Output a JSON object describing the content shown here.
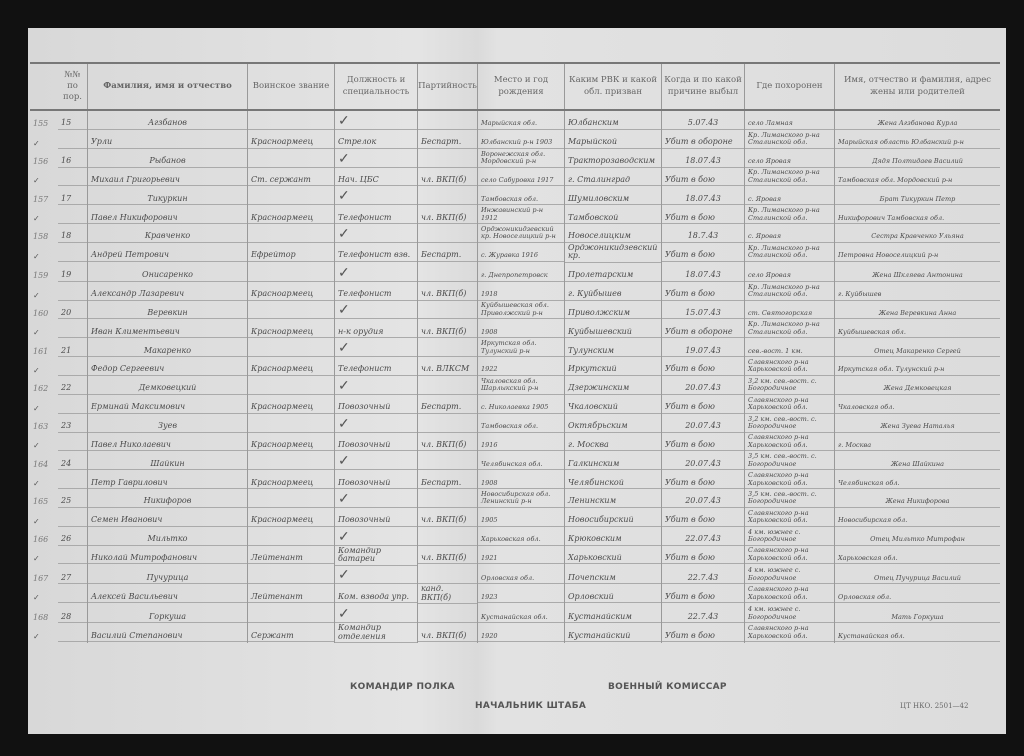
{
  "header": [
    "№№ по пор.",
    "Фамилия, имя и отчество",
    "Воинское звание",
    "Должность и специальность",
    "Партийность",
    "Место и год рождения",
    "Каким РВК и какой обл. призван",
    "Когда и по какой причине выбыл",
    "Где похоронен",
    "Имя, отчество и фамилия, адрес жены или родителей"
  ],
  "records": [
    {
      "margin": "155",
      "no": "15",
      "surname": "Агзбанов",
      "name": "Урли",
      "rank": "Красноармеец",
      "position": "Стрелок",
      "party": "Беспарт.",
      "birth": [
        "Марыйская обл.",
        "Юлбанский р-н 1903"
      ],
      "rvk": [
        "Юлбанским",
        "Марыйской"
      ],
      "date": "5.07.43",
      "cause": "Убит в обороне",
      "burial": [
        "село Ламная",
        "Кр. Лиманского р-на Сталинской обл."
      ],
      "relatives": [
        "Жена Агзбанова Курла",
        "Марыйская область Юлбанский р-н"
      ]
    },
    {
      "margin": "156",
      "no": "16",
      "surname": "Рыбанов",
      "name": "Михаил Григорьевич",
      "rank": "Ст. сержант",
      "position": "Нач. ЦБС",
      "party": "чл. ВКП(б)",
      "birth": [
        "Воронежская обл. Мордовский р-н",
        "село Сабуровка 1917"
      ],
      "rvk": [
        "Тракторозаводским",
        "г. Сталинград"
      ],
      "date": "18.07.43",
      "cause": "Убит в бою",
      "burial": [
        "село Яровая",
        "Кр. Лиманского р-на Сталинской обл."
      ],
      "relatives": [
        "Дядя Полтидаев Василий",
        "Тамбовская обл. Мордовский р-н"
      ]
    },
    {
      "margin": "157",
      "no": "17",
      "surname": "Тикуркин",
      "name": "Павел Никифорович",
      "rank": "Красноармеец",
      "position": "Телефонист",
      "party": "чл. ВКП(б)",
      "birth": [
        "Тамбовская обл.",
        "Инжавинский р-н 1912"
      ],
      "rvk": [
        "Шумиловским",
        "Тамбовской"
      ],
      "date": "18.07.43",
      "cause": "Убит в бою",
      "burial": [
        "с. Яровая",
        "Кр. Лиманского р-на Сталинской обл."
      ],
      "relatives": [
        "Брат Тикуркин Петр",
        "Никифорович Тамбовская обл."
      ]
    },
    {
      "margin": "158",
      "no": "18",
      "surname": "Кравченко",
      "name": "Андрей Петрович",
      "rank": "Ефрейтор",
      "position": "Телефонист взв.",
      "party": "Беспарт.",
      "birth": [
        "Орджоникидзевский кр. Новоселицкий р-н",
        "с. Журавка 1916"
      ],
      "rvk": [
        "Новоселицким",
        "Орджоникидзевский кр."
      ],
      "date": "18.7.43",
      "cause": "Убит в бою",
      "burial": [
        "с. Яровая",
        "Кр. Лиманского р-на Сталинской обл."
      ],
      "relatives": [
        "Сестра Кравченко Ульяна",
        "Петровна Новоселицкий р-н"
      ]
    },
    {
      "margin": "159",
      "no": "19",
      "surname": "Онисаренко",
      "name": "Александр Лазаревич",
      "rank": "Красноармеец",
      "position": "Телефонист",
      "party": "чл. ВКП(б)",
      "birth": [
        "г. Днепропетровск",
        "1918"
      ],
      "rvk": [
        "Пролетарским",
        "г. Куйбышев"
      ],
      "date": "18.07.43",
      "cause": "Убит в бою",
      "burial": [
        "село Яровая",
        "Кр. Лиманского р-на Сталинской обл."
      ],
      "relatives": [
        "Жена Шкляева Антонина",
        "г. Куйбышев"
      ]
    },
    {
      "margin": "160",
      "no": "20",
      "surname": "Веревкин",
      "name": "Иван Климентьевич",
      "rank": "Красноармеец",
      "position": "н-к орудия",
      "party": "чл. ВКП(б)",
      "birth": [
        "Куйбышевская обл. Приволжский р-н",
        "1908"
      ],
      "rvk": [
        "Приволжским",
        "Куйбышевский"
      ],
      "date": "15.07.43",
      "cause": "Убит в обороне",
      "burial": [
        "ст. Святогорская",
        "Кр. Лиманского р-на Сталинской обл."
      ],
      "relatives": [
        "Жена Веревкина Анна",
        "Куйбышевская обл."
      ]
    },
    {
      "margin": "161",
      "no": "21",
      "surname": "Макаренко",
      "name": "Федор Сергеевич",
      "rank": "Красноармеец",
      "position": "Телефонист",
      "party": "чл. ВЛКСМ",
      "birth": [
        "Иркутская обл. Тулунский р-н",
        "1922"
      ],
      "rvk": [
        "Тулунским",
        "Иркутский"
      ],
      "date": "19.07.43",
      "cause": "Убит в бою",
      "burial": [
        "сев.-вост. 1 км.",
        "Славянского р-на Харьковской обл."
      ],
      "relatives": [
        "Отец Макаренко Сергей",
        "Иркутская обл. Тулунский р-н"
      ]
    },
    {
      "margin": "162",
      "no": "22",
      "surname": "Демковецкий",
      "name": "Ерминай Максимович",
      "rank": "Красноармеец",
      "position": "Повозочный",
      "party": "Беспарт.",
      "birth": [
        "Чкаловская обл. Шарлыкский р-н",
        "с. Николаевка 1905"
      ],
      "rvk": [
        "Дзержинским",
        "Чкаловский"
      ],
      "date": "20.07.43",
      "cause": "Убит в бою",
      "burial": [
        "3,2 км. сев.-вост. с. Богородичное",
        "Славянского р-на Харьковской обл."
      ],
      "relatives": [
        "Жена Демковецкая",
        "Чкаловская обл."
      ]
    },
    {
      "margin": "163",
      "no": "23",
      "surname": "Зуев",
      "name": "Павел Николаевич",
      "rank": "Красноармеец",
      "position": "Повозочный",
      "party": "чл. ВКП(б)",
      "birth": [
        "Тамбовская обл.",
        "1916"
      ],
      "rvk": [
        "Октябрьским",
        "г. Москва"
      ],
      "date": "20.07.43",
      "cause": "Убит в бою",
      "burial": [
        "3,2 км. сев.-вост. с. Богородичное",
        "Славянского р-на Харьковской обл."
      ],
      "relatives": [
        "Жена Зуева Наталья",
        "г. Москва"
      ]
    },
    {
      "margin": "164",
      "no": "24",
      "surname": "Шайкин",
      "name": "Петр Гаврилович",
      "rank": "Красноармеец",
      "position": "Повозочный",
      "party": "Беспарт.",
      "birth": [
        "Челябинская обл.",
        "1908"
      ],
      "rvk": [
        "Галкинским",
        "Челябинской"
      ],
      "date": "20.07.43",
      "cause": "Убит в бою",
      "burial": [
        "3,5 км. сев.-вост. с. Богородичное",
        "Славянского р-на Харьковской обл."
      ],
      "relatives": [
        "Жена Шайкина",
        "Челябинская обл."
      ]
    },
    {
      "margin": "165",
      "no": "25",
      "surname": "Никифоров",
      "name": "Семен Иванович",
      "rank": "Красноармеец",
      "position": "Повозочный",
      "party": "чл. ВКП(б)",
      "birth": [
        "Новосибирская обл. Ленинский р-н",
        "1905"
      ],
      "rvk": [
        "Ленинским",
        "Новосибирский"
      ],
      "date": "20.07.43",
      "cause": "Убит в бою",
      "burial": [
        "3,5 км. сев.-вост. с. Богородичное",
        "Славянского р-на Харьковской обл."
      ],
      "relatives": [
        "Жена Никифорова",
        "Новосибирская обл."
      ]
    },
    {
      "margin": "166",
      "no": "26",
      "surname": "Мильтко",
      "name": "Николай Митрофанович",
      "rank": "Лейтенант",
      "position": "Командир батареи",
      "party": "чл. ВКП(б)",
      "birth": [
        "Харьковская обл.",
        "1921"
      ],
      "rvk": [
        "Крюковским",
        "Харьковский"
      ],
      "date": "22.07.43",
      "cause": "Убит в бою",
      "burial": [
        "4 км. южнее с. Богородичное",
        "Славянского р-на Харьковской обл."
      ],
      "relatives": [
        "Отец Мильтко Митрофан",
        "Харьковская обл."
      ]
    },
    {
      "margin": "167",
      "no": "27",
      "surname": "Пучурица",
      "name": "Алексей Васильевич",
      "rank": "Лейтенант",
      "position": "Ком. взвода упр.",
      "party": "канд. ВКП(б)",
      "birth": [
        "Орловская обл.",
        "1923"
      ],
      "rvk": [
        "Почепским",
        "Орловский"
      ],
      "date": "22.7.43",
      "cause": "Убит в бою",
      "burial": [
        "4 км. южнее с. Богородичное",
        "Славянского р-на Харьковской обл."
      ],
      "relatives": [
        "Отец Пучурица Василий",
        "Орловская обл."
      ]
    },
    {
      "margin": "168",
      "no": "28",
      "surname": "Горкуша",
      "name": "Василий Степанович",
      "rank": "Сержант",
      "position": "Командир отделения",
      "party": "чл. ВКП(б)",
      "birth": [
        "Кустанайская обл.",
        "1920"
      ],
      "rvk": [
        "Кустанайским",
        "Кустанайский"
      ],
      "date": "22.7.43",
      "cause": "Убит в бою",
      "burial": [
        "4 км. южнее с. Богородичное",
        "Славянского р-на Харьковской обл."
      ],
      "relatives": [
        "Мать Горкуша",
        "Кустанайская обл."
      ]
    }
  ],
  "footer": {
    "commander": "КОМАНДИР ПОЛКА",
    "commissar": "ВОЕННЫЙ КОМИССАР",
    "chief_of_staff": "НАЧАЛЬНИК ШТАБА",
    "form_code": "ЦТ НКО. 2501—42"
  }
}
